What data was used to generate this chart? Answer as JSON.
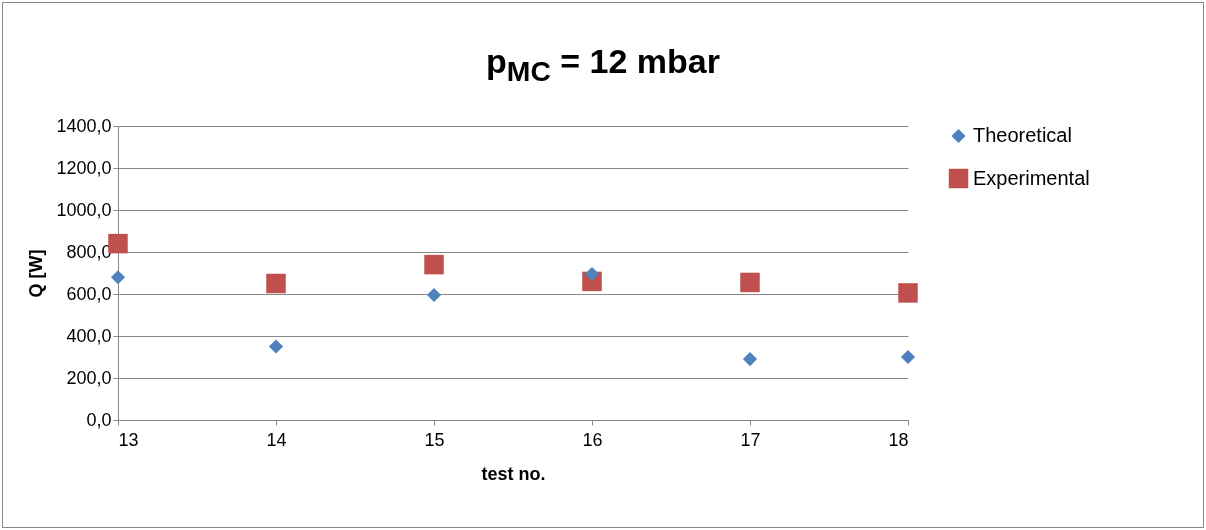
{
  "chart_data": {
    "type": "scatter",
    "title": "p$_{MC}$ = 12 mbar",
    "xlabel": "test no.",
    "ylabel": "Q [W]",
    "x": [
      13,
      14,
      15,
      16,
      17,
      18
    ],
    "series": [
      {
        "name": "Theoretical",
        "color": "#4f81bd",
        "marker": "diamond",
        "values": [
          680,
          350,
          595,
          695,
          290,
          300
        ]
      },
      {
        "name": "Experimental",
        "color": "#c0504d",
        "marker": "square",
        "values": [
          840,
          650,
          740,
          660,
          655,
          605
        ]
      }
    ],
    "xlim": [
      13,
      18
    ],
    "xticks": [
      13,
      14,
      15,
      16,
      17,
      18
    ],
    "ylim": [
      0,
      1400
    ],
    "yticks": [
      {
        "value": 0,
        "label": "0,0"
      },
      {
        "value": 200,
        "label": "200,0"
      },
      {
        "value": 400,
        "label": "400,0"
      },
      {
        "value": 600,
        "label": "600,0"
      },
      {
        "value": 800,
        "label": "800,0"
      },
      {
        "value": 1000,
        "label": "1000,0"
      },
      {
        "value": 1200,
        "label": "1200,0"
      },
      {
        "value": 1400,
        "label": "1400,0"
      }
    ],
    "grid": "y",
    "legend": "right"
  }
}
